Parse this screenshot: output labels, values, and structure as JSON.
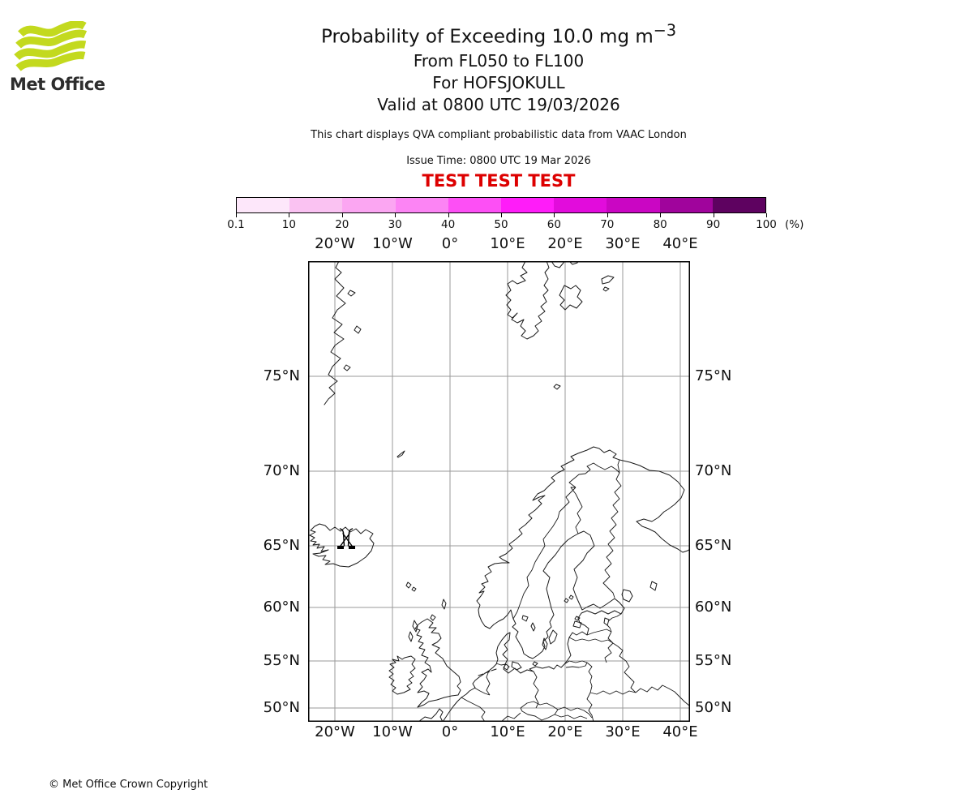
{
  "brand": {
    "name": "Met Office",
    "logo_color": "#c3d91e",
    "text_color": "#2d2d2d"
  },
  "header": {
    "title_prefix": "Probability of Exceeding 10.0 mg m",
    "title_superscript": "−3",
    "flight_levels": "From FL050 to FL100",
    "volcano_line": "For HOFSJOKULL",
    "valid_time": "Valid at 0800 UTC 19/03/2026",
    "qva_note": "This chart displays QVA compliant probabilistic data from VAAC London",
    "issue_time": "Issue Time: 0800 UTC 19 Mar 2026",
    "test_banner": "TEST TEST TEST",
    "test_banner_color": "#dd0000"
  },
  "colorbar": {
    "unit_label": "(%)",
    "tick_labels": [
      "0.1",
      "10",
      "20",
      "30",
      "40",
      "50",
      "60",
      "70",
      "80",
      "90",
      "100"
    ],
    "segment_colors": [
      "#fde7fa",
      "#fac2f2",
      "#fba6f2",
      "#fc84f4",
      "#fd4ff5",
      "#ff1cf9",
      "#e20cdc",
      "#ca06c3",
      "#a0049c",
      "#5e0260"
    ]
  },
  "map": {
    "lon_labels": [
      "20°W",
      "10°W",
      "0°",
      "10°E",
      "20°E",
      "30°E",
      "40°E"
    ],
    "lat_labels": [
      "75°N",
      "70°N",
      "65°N",
      "60°N",
      "55°N",
      "50°N"
    ],
    "marker": "volcano-eruption-symbol at HOFSJOKULL"
  },
  "footer": {
    "copyright": "© Met Office Crown Copyright"
  },
  "chart_data": {
    "type": "map",
    "title": "Probability of Exceeding 10.0 mg m-3",
    "subtitle": [
      "From FL050 to FL100",
      "For HOFSJOKULL",
      "Valid at 0800 UTC 19/03/2026"
    ],
    "legend_unit": "(%)",
    "probability_levels_percent": [
      0.1,
      10,
      20,
      30,
      40,
      50,
      60,
      70,
      80,
      90,
      100
    ],
    "level_colors": [
      "#fde7fa",
      "#fac2f2",
      "#fba6f2",
      "#fc84f4",
      "#fd4ff5",
      "#ff1cf9",
      "#e20cdc",
      "#ca06c3",
      "#a0049c",
      "#5e0260"
    ],
    "lon_range_deg": [
      -24.6,
      41.8
    ],
    "lat_range_deg": [
      48.5,
      79.7
    ],
    "lon_gridlines_deg": [
      -20,
      -10,
      0,
      10,
      20,
      30,
      40
    ],
    "lat_gridlines_deg": [
      75,
      70,
      65,
      60,
      55,
      50
    ],
    "volcano": {
      "name": "HOFSJOKULL",
      "lat_deg": 64.8,
      "lon_deg": -18.9
    },
    "shaded_probability_regions": "none"
  }
}
